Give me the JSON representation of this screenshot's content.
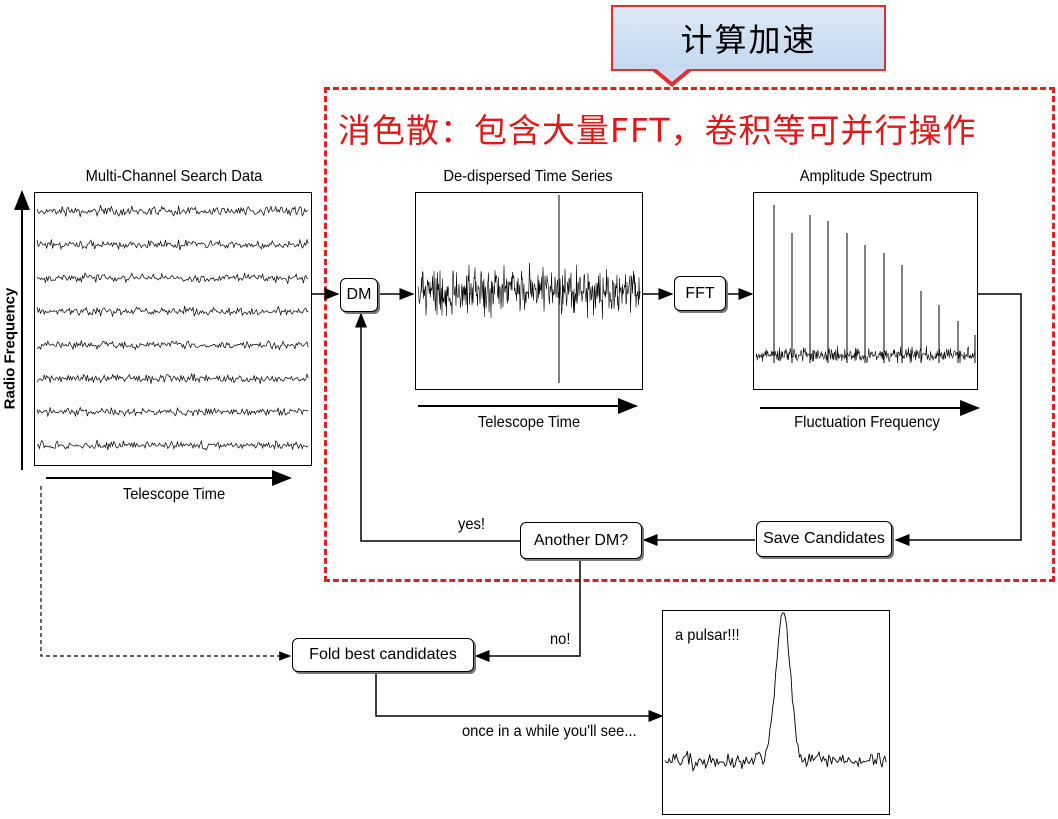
{
  "callout": {
    "label": "计算加速"
  },
  "headline": {
    "text": "消色散：包含大量FFT，卷积等可并行操作"
  },
  "panels": {
    "multichannel": {
      "title": "Multi-Channel Search Data",
      "xlabel": "Telescope Time",
      "ylabel": "Radio Frequency"
    },
    "dedispersed": {
      "title": "De-dispersed Time Series",
      "xlabel": "Telescope Time"
    },
    "spectrum": {
      "title": "Amplitude Spectrum",
      "xlabel": "Fluctuation Frequency"
    },
    "pulsar": {
      "label": "a pulsar!!!"
    }
  },
  "nodes": {
    "dm": "DM",
    "fft": "FFT",
    "another_dm": "Another DM?",
    "save_candidates": "Save Candidates",
    "fold_best": "Fold best candidates"
  },
  "edge_labels": {
    "yes": "yes!",
    "no": "no!",
    "once": "once in a while you'll see..."
  },
  "colors": {
    "accent_red": "#e01818",
    "callout_fill": "#c9dbf0"
  }
}
